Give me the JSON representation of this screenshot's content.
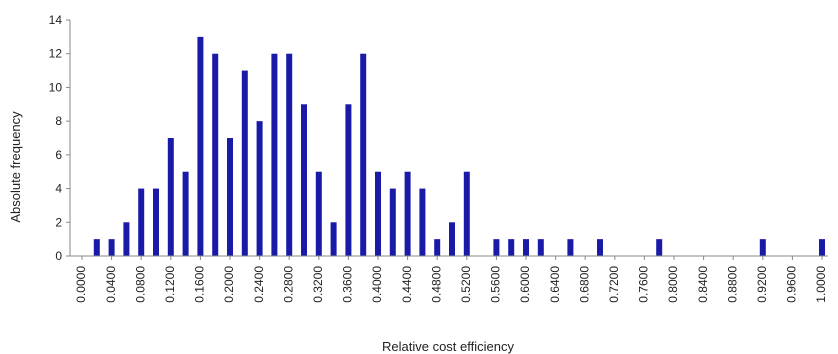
{
  "chart_data": {
    "type": "bar",
    "xlabel": "Relative cost efficiency",
    "ylabel": "Absolute frequency",
    "ylim": [
      0,
      14
    ],
    "yticks": [
      "0",
      "2",
      "4",
      "6",
      "8",
      "10",
      "12",
      "14"
    ],
    "grid": false,
    "bar_color": "#1a1aa8",
    "bin_width": 0.02,
    "x_tick_labels": [
      "0.0000",
      "0.0400",
      "0.0800",
      "0.1200",
      "0.1600",
      "0.2000",
      "0.2400",
      "0.2800",
      "0.3200",
      "0.3600",
      "0.4000",
      "0.4400",
      "0.4800",
      "0.5200",
      "0.5600",
      "0.6000",
      "0.6400",
      "0.6800",
      "0.7200",
      "0.7600",
      "0.8000",
      "0.8400",
      "0.8800",
      "0.9200",
      "0.9600",
      "1.0000"
    ],
    "bars": [
      {
        "x": 0.02,
        "value": 1
      },
      {
        "x": 0.04,
        "value": 1
      },
      {
        "x": 0.06,
        "value": 2
      },
      {
        "x": 0.08,
        "value": 4
      },
      {
        "x": 0.1,
        "value": 4
      },
      {
        "x": 0.12,
        "value": 7
      },
      {
        "x": 0.14,
        "value": 5
      },
      {
        "x": 0.16,
        "value": 13
      },
      {
        "x": 0.18,
        "value": 12
      },
      {
        "x": 0.2,
        "value": 7
      },
      {
        "x": 0.22,
        "value": 11
      },
      {
        "x": 0.24,
        "value": 8
      },
      {
        "x": 0.26,
        "value": 12
      },
      {
        "x": 0.28,
        "value": 12
      },
      {
        "x": 0.3,
        "value": 9
      },
      {
        "x": 0.32,
        "value": 5
      },
      {
        "x": 0.34,
        "value": 2
      },
      {
        "x": 0.36,
        "value": 9
      },
      {
        "x": 0.38,
        "value": 12
      },
      {
        "x": 0.4,
        "value": 5
      },
      {
        "x": 0.42,
        "value": 4
      },
      {
        "x": 0.44,
        "value": 5
      },
      {
        "x": 0.46,
        "value": 4
      },
      {
        "x": 0.48,
        "value": 1
      },
      {
        "x": 0.5,
        "value": 2
      },
      {
        "x": 0.52,
        "value": 5
      },
      {
        "x": 0.56,
        "value": 1
      },
      {
        "x": 0.58,
        "value": 1
      },
      {
        "x": 0.6,
        "value": 1
      },
      {
        "x": 0.62,
        "value": 1
      },
      {
        "x": 0.66,
        "value": 1
      },
      {
        "x": 0.7,
        "value": 1
      },
      {
        "x": 0.78,
        "value": 1
      },
      {
        "x": 0.92,
        "value": 1
      },
      {
        "x": 1.0,
        "value": 1
      }
    ]
  }
}
